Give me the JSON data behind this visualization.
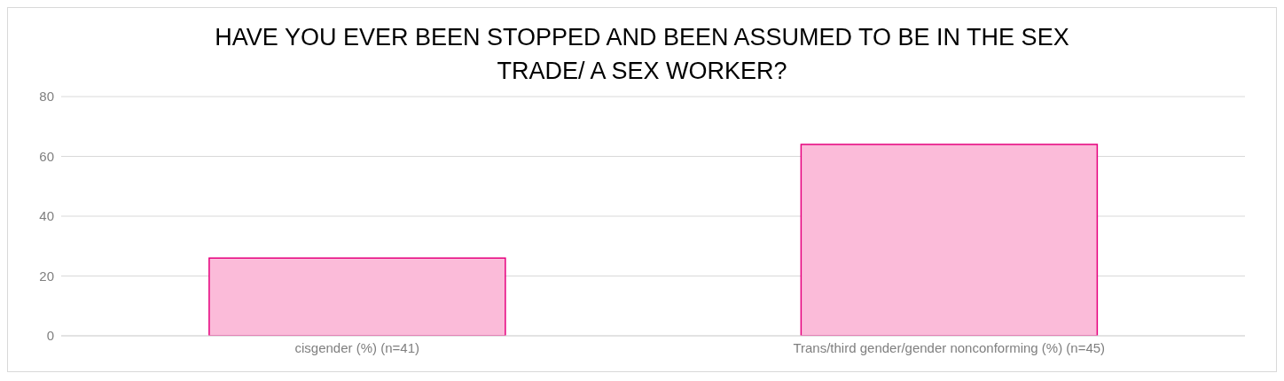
{
  "chart_data": {
    "type": "bar",
    "title": "HAVE YOU EVER BEEN STOPPED AND BEEN ASSUMED TO BE IN THE SEX TRADE/ A SEX WORKER?",
    "categories": [
      "cisgender (%)  (n=41)",
      "Trans/third gender/gender nonconforming (%) (n=45)"
    ],
    "values": [
      26,
      64
    ],
    "color": "#fbbbd9",
    "ylim": [
      0,
      80
    ],
    "yticks": [
      0,
      20,
      40,
      60,
      80
    ],
    "grid": "y"
  }
}
